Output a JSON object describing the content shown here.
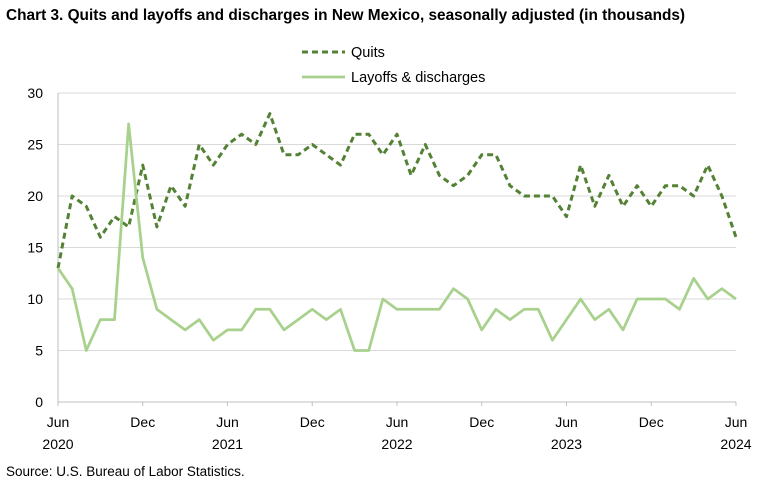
{
  "title": "Chart 3. Quits and layoffs and discharges in New Mexico, seasonally adjusted (in thousands)",
  "source": "Source: U.S. Bureau of Labor Statistics.",
  "colors": {
    "quits": "#548235",
    "layoffs": "#a9d18e",
    "grid": "#d9d9d9",
    "axis": "#bfbfbf"
  },
  "chart_data": {
    "type": "line",
    "title": "Chart 3. Quits and layoffs and discharges in New Mexico, seasonally adjusted (in thousands)",
    "x_start": "2020-06",
    "x_end": "2024-06",
    "x_tick_labels": [
      {
        "month": "Jun",
        "year": "2020"
      },
      {
        "month": "Dec",
        "year": ""
      },
      {
        "month": "Jun",
        "year": "2021"
      },
      {
        "month": "Dec",
        "year": ""
      },
      {
        "month": "Jun",
        "year": "2022"
      },
      {
        "month": "Dec",
        "year": ""
      },
      {
        "month": "Jun",
        "year": "2023"
      },
      {
        "month": "Dec",
        "year": ""
      },
      {
        "month": "Jun",
        "year": "2024"
      }
    ],
    "ylim": [
      0,
      30
    ],
    "y_ticks": [
      0,
      5,
      10,
      15,
      20,
      25,
      30
    ],
    "grid": true,
    "legend_position": "top-center",
    "series": [
      {
        "name": "Quits",
        "style": "dashed",
        "values": [
          13,
          20,
          19,
          16,
          18,
          17,
          23,
          17,
          21,
          19,
          25,
          23,
          25,
          26,
          25,
          28,
          24,
          24,
          25,
          24,
          23,
          26,
          26,
          24,
          26,
          22,
          25,
          22,
          21,
          22,
          24,
          24,
          21,
          20,
          20,
          20,
          18,
          23,
          19,
          22,
          19,
          21,
          19,
          21,
          21,
          20,
          23,
          20,
          16
        ]
      },
      {
        "name": "Layoffs & discharges",
        "style": "solid",
        "values": [
          13,
          11,
          5,
          8,
          8,
          27,
          14,
          9,
          8,
          7,
          8,
          6,
          7,
          7,
          9,
          9,
          7,
          8,
          9,
          8,
          9,
          5,
          5,
          10,
          9,
          9,
          9,
          9,
          11,
          10,
          7,
          9,
          8,
          9,
          9,
          6,
          8,
          10,
          8,
          9,
          7,
          10,
          10,
          10,
          9,
          12,
          10,
          11,
          10
        ]
      }
    ]
  }
}
